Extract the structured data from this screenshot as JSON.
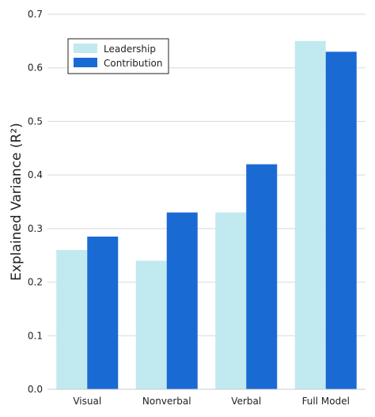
{
  "chart_data": {
    "type": "bar",
    "categories": [
      "Visual",
      "Nonverbal",
      "Verbal",
      "Full Model"
    ],
    "series": [
      {
        "name": "Leadership",
        "values": [
          0.26,
          0.24,
          0.33,
          0.65
        ],
        "color": "#c1e9f0"
      },
      {
        "name": "Contribution",
        "values": [
          0.285,
          0.33,
          0.42,
          0.63
        ],
        "color": "#1a6ad4"
      }
    ],
    "title": "",
    "xlabel": "",
    "ylabel": "Explained Variance (R²)",
    "ylim": [
      0,
      0.7
    ],
    "yticks": [
      "0.0",
      "0.1",
      "0.2",
      "0.3",
      "0.4",
      "0.5",
      "0.6",
      "0.7"
    ],
    "grid": "horizontal",
    "legend_position": "top-left"
  }
}
